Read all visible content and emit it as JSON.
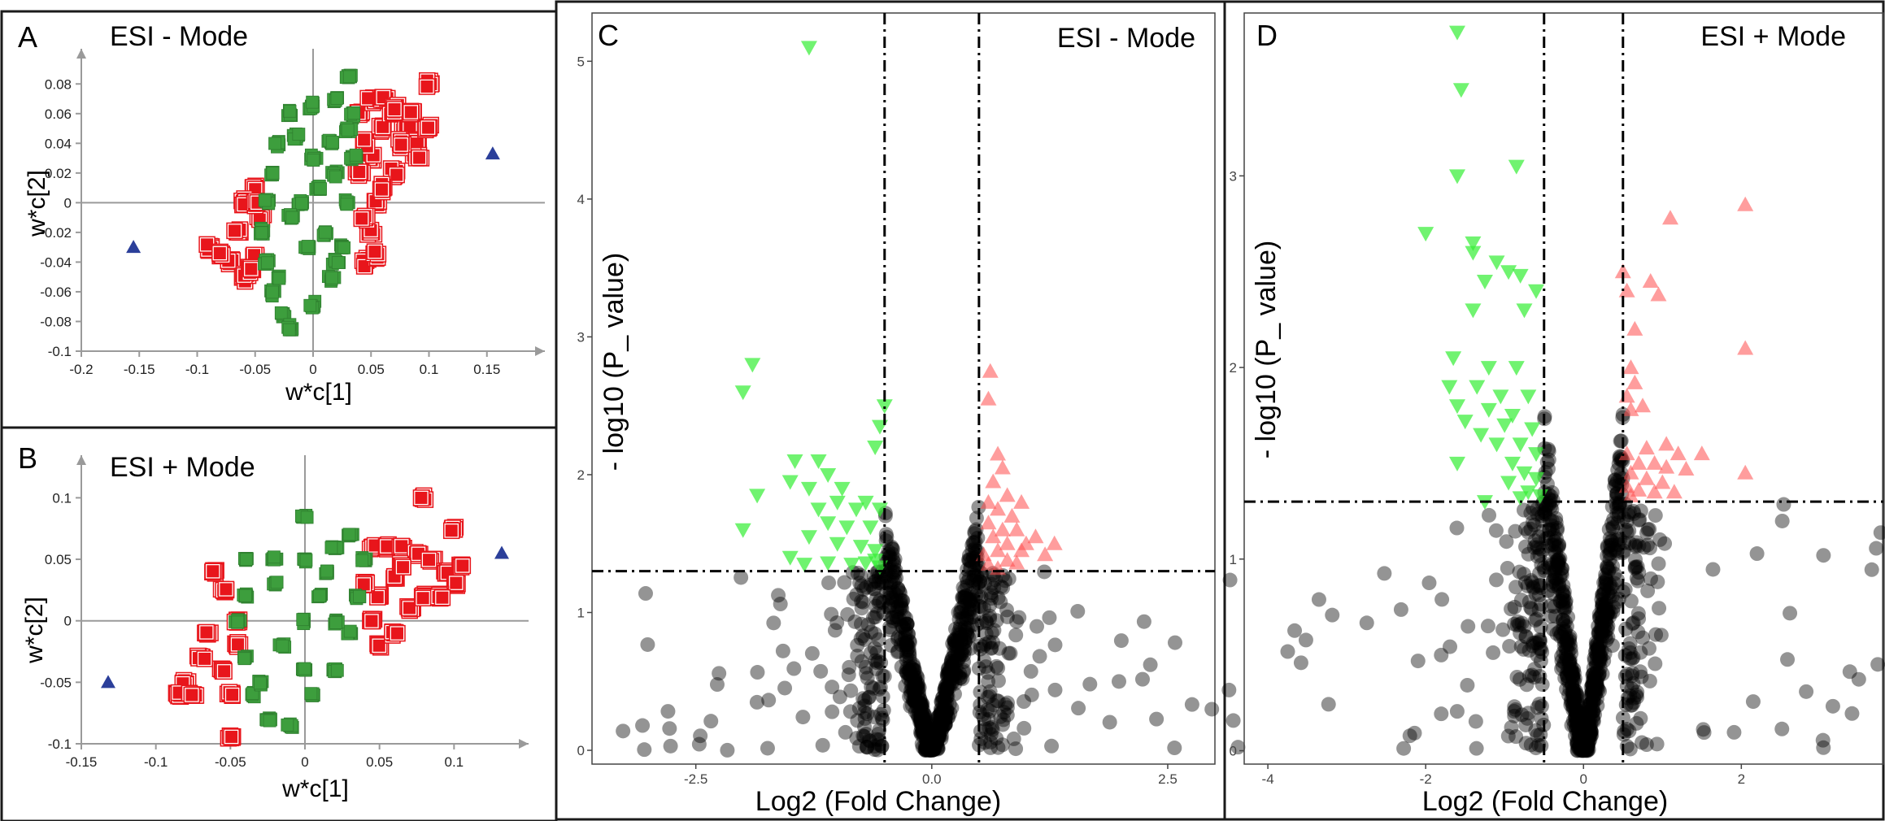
{
  "colors": {
    "up": "#e8151b",
    "green_sq": "#3d9e3d",
    "sig_down": "#33ee33",
    "sig_up": "#ff4d4d",
    "ns": "#000000",
    "outlier": "#2b3f9a",
    "axis": "#9a9a9a"
  },
  "chart_data": [
    {
      "panel": "A",
      "type": "scatter",
      "title": "ESI - Mode",
      "xlabel": "w*c[1]",
      "ylabel": "w*c[2]",
      "xlim": [
        -0.2,
        0.2
      ],
      "ylim": [
        -0.1,
        0.09
      ],
      "xticks": [
        "-0.2",
        "-0.15",
        "-0.1",
        "-0.05",
        "0",
        "0.05",
        "0.1",
        "0.15"
      ],
      "yticks": [
        "-0.1",
        "-0.08",
        "-0.06",
        "-0.04",
        "-0.02",
        "0",
        "0.02",
        "0.04",
        "0.06",
        "0.08"
      ],
      "clusters": {
        "green": {
          "points": [
            [
              -0.02,
              0.06
            ],
            [
              0.0,
              0.065
            ],
            [
              0.02,
              0.07
            ],
            [
              0.03,
              0.085
            ],
            [
              0.035,
              0.06
            ],
            [
              -0.03,
              0.04
            ],
            [
              -0.035,
              0.02
            ],
            [
              -0.04,
              0.0
            ],
            [
              -0.045,
              -0.02
            ],
            [
              -0.04,
              -0.04
            ],
            [
              -0.035,
              -0.06
            ],
            [
              -0.025,
              -0.075
            ],
            [
              -0.02,
              -0.085
            ],
            [
              0.0,
              -0.07
            ],
            [
              0.015,
              -0.05
            ],
            [
              0.025,
              -0.03
            ],
            [
              0.03,
              0.0
            ],
            [
              0.035,
              0.03
            ],
            [
              0.03,
              0.05
            ],
            [
              0.0,
              0.03
            ],
            [
              -0.01,
              0.0
            ],
            [
              -0.005,
              -0.03
            ],
            [
              0.01,
              -0.02
            ],
            [
              0.02,
              0.02
            ],
            [
              -0.02,
              -0.01
            ],
            [
              0.005,
              0.01
            ],
            [
              -0.015,
              0.045
            ],
            [
              0.015,
              0.04
            ],
            [
              -0.03,
              -0.05
            ],
            [
              0.02,
              -0.04
            ]
          ]
        },
        "red": {
          "points": [
            [
              0.04,
              0.06
            ],
            [
              0.05,
              0.07
            ],
            [
              0.06,
              0.07
            ],
            [
              0.07,
              0.065
            ],
            [
              0.08,
              0.05
            ],
            [
              0.09,
              0.04
            ],
            [
              0.1,
              0.08
            ],
            [
              0.1,
              0.05
            ],
            [
              0.09,
              0.03
            ],
            [
              0.06,
              0.05
            ],
            [
              0.05,
              0.03
            ],
            [
              0.055,
              0.0
            ],
            [
              0.05,
              -0.02
            ],
            [
              0.045,
              -0.04
            ],
            [
              0.055,
              -0.035
            ],
            [
              0.07,
              0.02
            ],
            [
              0.06,
              0.01
            ],
            [
              0.075,
              0.04
            ],
            [
              0.045,
              0.04
            ],
            [
              0.04,
              0.02
            ],
            [
              -0.05,
              0.01
            ],
            [
              -0.06,
              0.0
            ],
            [
              -0.065,
              -0.02
            ],
            [
              -0.07,
              -0.04
            ],
            [
              -0.06,
              -0.05
            ],
            [
              -0.05,
              -0.035
            ],
            [
              -0.045,
              -0.01
            ],
            [
              -0.09,
              -0.03
            ],
            [
              -0.08,
              -0.035
            ],
            [
              -0.055,
              -0.045
            ],
            [
              -0.05,
              0.0
            ],
            [
              0.045,
              -0.01
            ],
            [
              0.07,
              0.06
            ],
            [
              0.085,
              0.06
            ]
          ]
        }
      },
      "outliers": [
        [
          -0.155,
          -0.03
        ],
        [
          0.155,
          0.033
        ]
      ]
    },
    {
      "panel": "B",
      "type": "scatter",
      "title": "ESI + Mode",
      "xlabel": "w*c[1]",
      "ylabel": "w*c[2]",
      "xlim": [
        -0.15,
        0.15
      ],
      "ylim": [
        -0.1,
        0.13
      ],
      "xticks": [
        "-0.15",
        "-0.1",
        "-0.05",
        "0",
        "0.05",
        "0.1"
      ],
      "yticks": [
        "-0.1",
        "-0.05",
        "0",
        "0.05",
        "0.1"
      ],
      "clusters": {
        "green": {
          "points": [
            [
              -0.04,
              0.05
            ],
            [
              -0.02,
              0.05
            ],
            [
              0.0,
              0.05
            ],
            [
              0.02,
              0.06
            ],
            [
              0.03,
              0.07
            ],
            [
              0.0,
              0.085
            ],
            [
              -0.04,
              0.02
            ],
            [
              -0.045,
              0.0
            ],
            [
              -0.04,
              -0.03
            ],
            [
              -0.035,
              -0.06
            ],
            [
              -0.025,
              -0.08
            ],
            [
              -0.01,
              -0.085
            ],
            [
              0.005,
              -0.06
            ],
            [
              0.02,
              -0.04
            ],
            [
              0.03,
              -0.01
            ],
            [
              0.035,
              0.02
            ],
            [
              0.04,
              0.05
            ],
            [
              0.0,
              0.0
            ],
            [
              -0.015,
              -0.02
            ],
            [
              0.01,
              0.02
            ],
            [
              -0.02,
              0.03
            ],
            [
              0.02,
              0.0
            ],
            [
              -0.03,
              -0.05
            ],
            [
              0.0,
              -0.04
            ],
            [
              0.015,
              0.04
            ]
          ]
        },
        "red": {
          "points": [
            [
              0.045,
              0.06
            ],
            [
              0.055,
              0.06
            ],
            [
              0.065,
              0.06
            ],
            [
              0.075,
              0.055
            ],
            [
              0.085,
              0.05
            ],
            [
              0.095,
              0.04
            ],
            [
              0.1,
              0.03
            ],
            [
              0.105,
              0.045
            ],
            [
              0.1,
              0.075
            ],
            [
              0.08,
              0.1
            ],
            [
              0.06,
              0.035
            ],
            [
              0.05,
              0.02
            ],
            [
              0.045,
              0.0
            ],
            [
              0.05,
              -0.02
            ],
            [
              0.06,
              -0.01
            ],
            [
              0.07,
              0.01
            ],
            [
              0.08,
              0.02
            ],
            [
              0.09,
              0.02
            ],
            [
              0.065,
              0.045
            ],
            [
              -0.045,
              0.0
            ],
            [
              -0.055,
              0.025
            ],
            [
              -0.06,
              0.04
            ],
            [
              -0.065,
              -0.01
            ],
            [
              -0.07,
              -0.03
            ],
            [
              -0.08,
              -0.05
            ],
            [
              -0.085,
              -0.06
            ],
            [
              -0.075,
              -0.06
            ],
            [
              -0.055,
              -0.04
            ],
            [
              -0.05,
              -0.06
            ],
            [
              -0.05,
              -0.095
            ],
            [
              -0.045,
              -0.02
            ],
            [
              0.04,
              0.03
            ]
          ]
        }
      },
      "outliers": [
        [
          -0.132,
          -0.05
        ],
        [
          0.132,
          0.055
        ]
      ]
    },
    {
      "panel": "C",
      "type": "scatter",
      "title": "ESI - Mode",
      "xlabel": "Log2 (Fold Change)",
      "ylabel": "- log10 (P_ value)",
      "xlim": [
        -3.6,
        3.0
      ],
      "ylim": [
        -0.1,
        5.35
      ],
      "xticks": [
        "-2.5",
        "0.0",
        "2.5"
      ],
      "yticks": [
        "0",
        "1",
        "2",
        "3",
        "4",
        "5"
      ],
      "fc_cutoff": [
        -0.5,
        0.5
      ],
      "p_cutoff": 1.3,
      "sig_down": [
        [
          -1.3,
          5.1
        ],
        [
          -1.9,
          2.8
        ],
        [
          -2.0,
          2.6
        ],
        [
          -0.5,
          2.5
        ],
        [
          -0.55,
          2.35
        ],
        [
          -0.6,
          2.2
        ],
        [
          -1.45,
          2.1
        ],
        [
          -1.2,
          2.1
        ],
        [
          -1.1,
          2.0
        ],
        [
          -1.5,
          1.95
        ],
        [
          -1.3,
          1.9
        ],
        [
          -0.95,
          1.9
        ],
        [
          -1.0,
          1.8
        ],
        [
          -0.7,
          1.8
        ],
        [
          -1.2,
          1.75
        ],
        [
          -0.8,
          1.75
        ],
        [
          -0.55,
          1.75
        ],
        [
          -1.85,
          1.85
        ],
        [
          -2.0,
          1.6
        ],
        [
          -1.1,
          1.65
        ],
        [
          -0.9,
          1.62
        ],
        [
          -0.65,
          1.62
        ],
        [
          -1.3,
          1.55
        ],
        [
          -1.0,
          1.5
        ],
        [
          -0.75,
          1.48
        ],
        [
          -0.6,
          1.45
        ],
        [
          -1.5,
          1.4
        ],
        [
          -1.35,
          1.35
        ],
        [
          -1.1,
          1.36
        ],
        [
          -0.85,
          1.35
        ],
        [
          -0.7,
          1.36
        ],
        [
          -0.6,
          1.38
        ],
        [
          -0.55,
          1.33
        ]
      ],
      "sig_up": [
        [
          0.62,
          2.75
        ],
        [
          0.6,
          2.55
        ],
        [
          0.7,
          2.15
        ],
        [
          0.75,
          2.05
        ],
        [
          0.65,
          1.95
        ],
        [
          0.8,
          1.85
        ],
        [
          0.6,
          1.8
        ],
        [
          0.7,
          1.75
        ],
        [
          0.95,
          1.8
        ],
        [
          0.85,
          1.7
        ],
        [
          0.6,
          1.65
        ],
        [
          0.75,
          1.6
        ],
        [
          0.9,
          1.6
        ],
        [
          1.1,
          1.55
        ],
        [
          0.65,
          1.55
        ],
        [
          0.8,
          1.5
        ],
        [
          1.0,
          1.5
        ],
        [
          1.3,
          1.5
        ],
        [
          0.7,
          1.45
        ],
        [
          0.95,
          1.45
        ],
        [
          1.2,
          1.42
        ],
        [
          0.55,
          1.42
        ],
        [
          0.8,
          1.38
        ],
        [
          0.6,
          1.35
        ],
        [
          0.7,
          1.32
        ],
        [
          0.9,
          1.36
        ]
      ]
    },
    {
      "panel": "D",
      "type": "scatter",
      "title": "ESI + Mode",
      "xlabel": "Log2 (Fold Change)",
      "ylabel": "- log10 (P_ value)",
      "xlim": [
        -4.3,
        3.8
      ],
      "ylim": [
        -0.07,
        3.85
      ],
      "xticks": [
        "-4",
        "-2",
        "0",
        "2"
      ],
      "yticks": [
        "0",
        "1",
        "2",
        "3"
      ],
      "fc_cutoff": [
        -0.5,
        0.5
      ],
      "p_cutoff": 1.3,
      "sig_down": [
        [
          -1.6,
          3.75
        ],
        [
          -1.55,
          3.45
        ],
        [
          -1.6,
          3.0
        ],
        [
          -0.85,
          3.05
        ],
        [
          -2.0,
          2.7
        ],
        [
          -1.4,
          2.65
        ],
        [
          -1.4,
          2.6
        ],
        [
          -1.1,
          2.55
        ],
        [
          -0.95,
          2.5
        ],
        [
          -0.8,
          2.48
        ],
        [
          -1.25,
          2.45
        ],
        [
          -0.6,
          2.4
        ],
        [
          -1.4,
          2.3
        ],
        [
          -0.75,
          2.3
        ],
        [
          -1.2,
          2.0
        ],
        [
          -0.85,
          2.0
        ],
        [
          -1.65,
          2.05
        ],
        [
          -1.7,
          1.9
        ],
        [
          -1.35,
          1.9
        ],
        [
          -1.05,
          1.85
        ],
        [
          -0.7,
          1.85
        ],
        [
          -1.6,
          1.8
        ],
        [
          -1.2,
          1.78
        ],
        [
          -0.9,
          1.75
        ],
        [
          -1.5,
          1.72
        ],
        [
          -1.0,
          1.7
        ],
        [
          -0.65,
          1.68
        ],
        [
          -1.3,
          1.65
        ],
        [
          -0.8,
          1.6
        ],
        [
          -1.1,
          1.6
        ],
        [
          -0.6,
          1.55
        ],
        [
          -0.9,
          1.5
        ],
        [
          -0.75,
          1.45
        ],
        [
          -0.6,
          1.42
        ],
        [
          -1.6,
          1.5
        ],
        [
          -0.95,
          1.4
        ],
        [
          -0.7,
          1.35
        ],
        [
          -1.25,
          1.3
        ],
        [
          -0.55,
          1.33
        ],
        [
          -0.8,
          1.32
        ]
      ],
      "sig_up": [
        [
          2.05,
          2.85
        ],
        [
          1.1,
          2.78
        ],
        [
          0.5,
          2.5
        ],
        [
          0.85,
          2.45
        ],
        [
          0.55,
          2.4
        ],
        [
          0.95,
          2.38
        ],
        [
          0.65,
          2.2
        ],
        [
          2.05,
          2.1
        ],
        [
          0.6,
          2.0
        ],
        [
          0.65,
          1.92
        ],
        [
          0.55,
          1.85
        ],
        [
          0.75,
          1.8
        ],
        [
          0.6,
          1.78
        ],
        [
          1.05,
          1.6
        ],
        [
          0.8,
          1.58
        ],
        [
          1.2,
          1.55
        ],
        [
          0.55,
          1.55
        ],
        [
          1.5,
          1.55
        ],
        [
          0.7,
          1.5
        ],
        [
          0.9,
          1.5
        ],
        [
          1.05,
          1.48
        ],
        [
          1.3,
          1.47
        ],
        [
          2.05,
          1.45
        ],
        [
          0.6,
          1.45
        ],
        [
          0.8,
          1.42
        ],
        [
          1.0,
          1.4
        ],
        [
          0.55,
          1.38
        ],
        [
          0.7,
          1.36
        ],
        [
          0.9,
          1.35
        ],
        [
          0.6,
          1.33
        ],
        [
          1.15,
          1.35
        ]
      ]
    }
  ]
}
